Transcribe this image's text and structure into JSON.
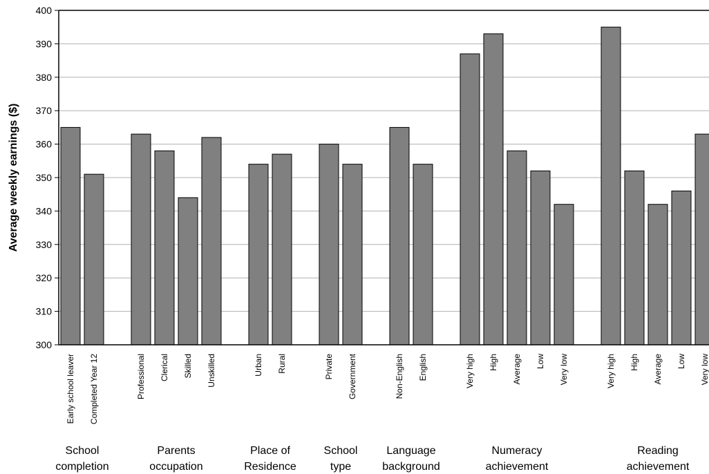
{
  "chart_data": {
    "type": "bar",
    "title": "",
    "xlabel": "",
    "ylabel": "Average weekly earnings ($)",
    "ylim": [
      300,
      400
    ],
    "yticks": [
      300,
      310,
      320,
      330,
      340,
      350,
      360,
      370,
      380,
      390,
      400
    ],
    "grid": true,
    "bar_color": "#808080",
    "groups": [
      {
        "label": [
          "School",
          "completion"
        ],
        "categories": [
          "Early school leaver",
          "Completed Year 12"
        ],
        "values": [
          365,
          351
        ]
      },
      {
        "label": [
          "Parents",
          "occupation"
        ],
        "categories": [
          "Professional",
          "Clerical",
          "Skilled",
          "Unskilled"
        ],
        "values": [
          363,
          358,
          344,
          362
        ]
      },
      {
        "label": [
          "Place of",
          "Residence"
        ],
        "categories": [
          "Urban",
          "Rural"
        ],
        "values": [
          354,
          357
        ]
      },
      {
        "label": [
          "School",
          "type"
        ],
        "categories": [
          "Private",
          "Government"
        ],
        "values": [
          360,
          354
        ]
      },
      {
        "label": [
          "Language",
          "background"
        ],
        "categories": [
          "Non-English",
          "English"
        ],
        "values": [
          365,
          354
        ]
      },
      {
        "label": [
          "Numeracy",
          "achievement"
        ],
        "categories": [
          "Very high",
          "High",
          "Average",
          "Low",
          "Very low"
        ],
        "values": [
          387,
          393,
          358,
          352,
          342
        ]
      },
      {
        "label": [
          "Reading",
          "achievement"
        ],
        "categories": [
          "Very high",
          "High",
          "Average",
          "Low",
          "Very low"
        ],
        "values": [
          395,
          352,
          342,
          346,
          363
        ]
      }
    ]
  }
}
